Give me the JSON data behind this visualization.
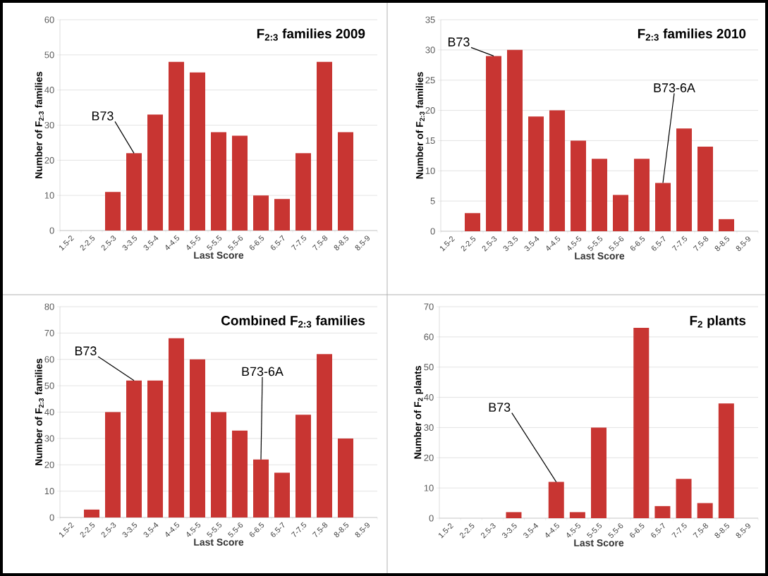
{
  "chart_data": [
    {
      "type": "bar",
      "title": "F$_{2:3}$ families 2009",
      "xlabel": "Last Score",
      "ylabel": "Number of F$_{2:3}$ families",
      "categories": [
        "1.5-2",
        "2-2.5",
        "2.5-3",
        "3-3.5",
        "3.5-4",
        "4-4.5",
        "4.5-5",
        "5-5.5",
        "5.5-6",
        "6-6.5",
        "6.5-7",
        "7-7.5",
        "7.5-8",
        "8-8.5",
        "8.5-9"
      ],
      "values": [
        0,
        0,
        11,
        22,
        33,
        48,
        45,
        28,
        27,
        10,
        9,
        22,
        48,
        28,
        0
      ],
      "color": "#c83532",
      "ylim": [
        0,
        60
      ],
      "yticks": [
        0,
        10,
        20,
        30,
        40,
        50,
        60
      ],
      "grid": "y",
      "annotations": [
        {
          "text": "B73",
          "x": "3-3.5",
          "y": 22
        }
      ]
    },
    {
      "type": "bar",
      "title": "F$_{2:3}$ families 2010",
      "xlabel": "Last Score",
      "ylabel": "Number of F$_{2:3}$ families",
      "categories": [
        "1.5-2",
        "2-2.5",
        "2.5-3",
        "3-3.5",
        "3.5-4",
        "4-4.5",
        "4.5-5",
        "5-5.5",
        "5.5-6",
        "6-6.5",
        "6.5-7",
        "7-7.5",
        "7.5-8",
        "8-8.5",
        "8.5-9"
      ],
      "values": [
        0,
        3,
        29,
        30,
        19,
        20,
        15,
        12,
        6,
        12,
        8,
        17,
        14,
        2,
        0
      ],
      "color": "#c83532",
      "ylim": [
        0,
        35
      ],
      "yticks": [
        0,
        5,
        10,
        15,
        20,
        25,
        30,
        35
      ],
      "grid": "y",
      "annotations": [
        {
          "text": "B73",
          "x": "2.5-3",
          "y": 29
        },
        {
          "text": "B73-6A",
          "x": "6.5-7",
          "y": 8
        }
      ]
    },
    {
      "type": "bar",
      "title": "Combined F$_{2:3}$ families",
      "xlabel": "Last Score",
      "ylabel": "Number of F$_{2:3}$ families",
      "categories": [
        "1.5-2",
        "2-2.5",
        "2.5-3",
        "3-3.5",
        "3.5-4",
        "4-4.5",
        "4.5-5",
        "5-5.5",
        "5.5-6",
        "6-6.5",
        "6.5-7",
        "7-7.5",
        "7.5-8",
        "8-8.5",
        "8.5-9"
      ],
      "values": [
        0,
        3,
        40,
        52,
        52,
        68,
        60,
        40,
        33,
        22,
        17,
        39,
        62,
        30,
        0
      ],
      "color": "#c83532",
      "ylim": [
        0,
        80
      ],
      "yticks": [
        0,
        10,
        20,
        30,
        40,
        50,
        60,
        70,
        80
      ],
      "grid": "y",
      "annotations": [
        {
          "text": "B73",
          "x": "3-3.5",
          "y": 52
        },
        {
          "text": "B73-6A",
          "x": "6-6.5",
          "y": 22
        }
      ]
    },
    {
      "type": "bar",
      "title": "F$_{2}$ plants",
      "xlabel": "Last Score",
      "ylabel": "Number of F$_{2}$ plants",
      "categories": [
        "1.5-2",
        "2-2.5",
        "2.5-3",
        "3-3.5",
        "3.5-4",
        "4-4.5",
        "4.5-5",
        "5-5.5",
        "5.5-6",
        "6-6.5",
        "6.5-7",
        "7-7.5",
        "7.5-8",
        "8-8.5",
        "8.5-9"
      ],
      "values": [
        0,
        0,
        0,
        2,
        0,
        12,
        2,
        30,
        0,
        63,
        4,
        13,
        5,
        38,
        0
      ],
      "color": "#c83532",
      "ylim": [
        0,
        70
      ],
      "yticks": [
        0,
        10,
        20,
        30,
        40,
        50,
        60,
        70
      ],
      "grid": "y",
      "annotations": [
        {
          "text": "B73",
          "x": "4-4.5",
          "y": 12
        }
      ]
    }
  ]
}
